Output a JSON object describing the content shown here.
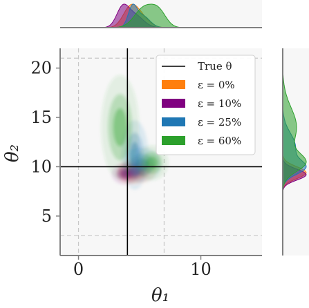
{
  "chart_data": {
    "type": "heatmap",
    "description_free": true,
    "xlabel": "θ₁",
    "ylabel": "θ₂",
    "xlim": [
      -1.5,
      15
    ],
    "ylim": [
      1,
      22
    ],
    "x_ticks": [
      0,
      10
    ],
    "y_ticks": [
      5,
      10,
      15,
      20
    ],
    "x_tick_labels": [
      "0",
      "10"
    ],
    "y_tick_labels": [
      "5",
      "10",
      "15",
      "20"
    ],
    "true_theta": {
      "x": 4,
      "y": 10,
      "label": "True θ",
      "color": "#000000"
    },
    "prior_box": {
      "x": [
        0,
        7
      ],
      "y": [
        3,
        21
      ],
      "style": "dashed",
      "color": "#c8c8c8"
    },
    "grid": false,
    "legend_position": "top-right",
    "legend_title_line": "True θ",
    "series": [
      {
        "name": "ε = 0%",
        "color": "#ff7f0e",
        "joint": [
          {
            "x": 4.8,
            "y": 9.6,
            "sx": 0.7,
            "sy": 0.6,
            "w": 0.6
          },
          {
            "x": 4.2,
            "y": 9.3,
            "sx": 0.5,
            "sy": 0.5,
            "w": 0.4
          }
        ],
        "marginal_x": [
          {
            "x": 4.2,
            "s": 0.6,
            "w": 0.6
          },
          {
            "x": 5.0,
            "s": 0.7,
            "w": 0.4
          }
        ],
        "marginal_y": [
          {
            "y": 9.4,
            "s": 0.6,
            "w": 1.0
          }
        ]
      },
      {
        "name": "ε = 10%",
        "color": "#800080",
        "joint": [
          {
            "x": 3.8,
            "y": 9.3,
            "sx": 0.5,
            "sy": 0.5,
            "w": 0.7
          },
          {
            "x": 4.6,
            "y": 9.5,
            "sx": 0.6,
            "sy": 0.5,
            "w": 0.3
          }
        ],
        "marginal_x": [
          {
            "x": 3.6,
            "s": 0.5,
            "w": 0.6
          },
          {
            "x": 4.6,
            "s": 0.7,
            "w": 0.4
          }
        ],
        "marginal_y": [
          {
            "y": 9.2,
            "s": 0.55,
            "w": 1.0
          }
        ]
      },
      {
        "name": "ε = 25%",
        "color": "#1f77b4",
        "joint": [
          {
            "x": 4.6,
            "y": 11.2,
            "sx": 0.5,
            "sy": 1.6,
            "w": 0.5
          },
          {
            "x": 5.2,
            "y": 10.2,
            "sx": 0.7,
            "sy": 0.8,
            "w": 0.5
          }
        ],
        "marginal_x": [
          {
            "x": 4.4,
            "s": 0.35,
            "w": 0.6
          },
          {
            "x": 5.2,
            "s": 0.6,
            "w": 0.4
          }
        ],
        "marginal_y": [
          {
            "y": 9.9,
            "s": 0.7,
            "w": 0.6
          },
          {
            "y": 12.0,
            "s": 1.4,
            "w": 0.4
          }
        ]
      },
      {
        "name": "ε = 60%",
        "color": "#2ca02c",
        "joint": [
          {
            "x": 3.4,
            "y": 14.0,
            "sx": 0.7,
            "sy": 2.4,
            "w": 0.45
          },
          {
            "x": 6.0,
            "y": 10.4,
            "sx": 0.6,
            "sy": 0.8,
            "w": 0.55
          }
        ],
        "marginal_x": [
          {
            "x": 5.4,
            "s": 0.8,
            "w": 0.6
          },
          {
            "x": 6.6,
            "s": 0.6,
            "w": 0.4
          }
        ],
        "marginal_y": [
          {
            "y": 10.4,
            "s": 0.9,
            "w": 0.6
          },
          {
            "y": 14.0,
            "s": 2.0,
            "w": 0.4
          }
        ]
      }
    ]
  }
}
